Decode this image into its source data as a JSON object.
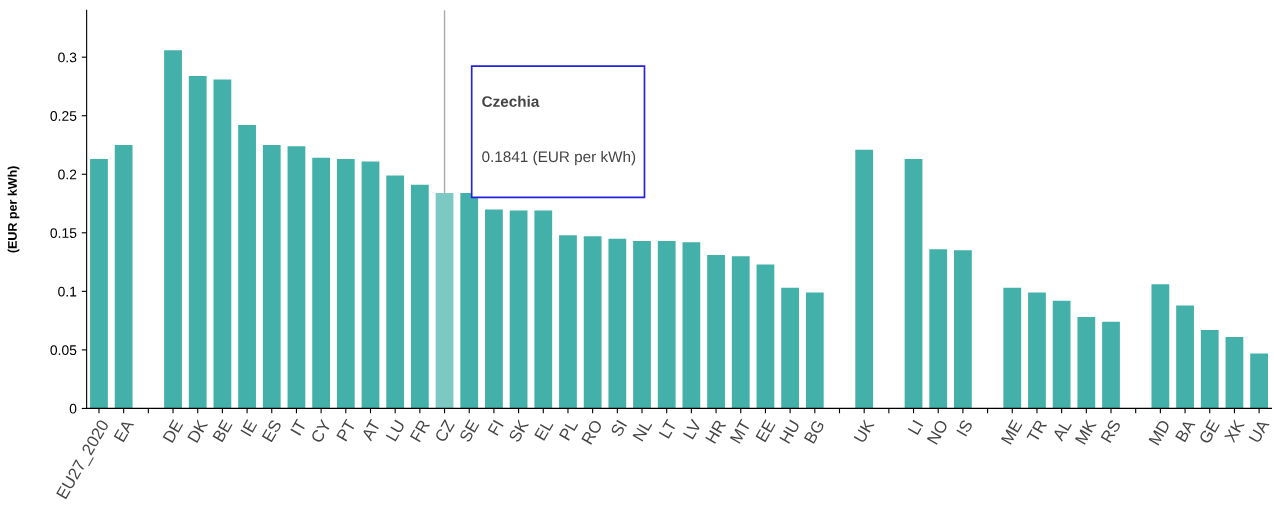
{
  "chart_data": {
    "type": "bar",
    "ylabel": "(EUR per kWh)",
    "categories": [
      "EU27_2020",
      "EA",
      null,
      "DE",
      "DK",
      "BE",
      "IE",
      "ES",
      "IT",
      "CY",
      "PT",
      "AT",
      "LU",
      "FR",
      "CZ",
      "SE",
      "FI",
      "SK",
      "EL",
      "PL",
      "RO",
      "SI",
      "NL",
      "LT",
      "LV",
      "HR",
      "MT",
      "EE",
      "HU",
      "BG",
      null,
      "UK",
      null,
      "LI",
      "NO",
      "IS",
      null,
      "ME",
      "TR",
      "AL",
      "MK",
      "RS",
      null,
      "MD",
      "BA",
      "GE",
      "XK",
      "UA"
    ],
    "values": [
      0.213,
      0.225,
      null,
      0.306,
      0.284,
      0.281,
      0.242,
      0.225,
      0.224,
      0.214,
      0.213,
      0.211,
      0.199,
      0.191,
      0.1841,
      0.184,
      0.17,
      0.169,
      0.169,
      0.148,
      0.147,
      0.145,
      0.143,
      0.143,
      0.142,
      0.131,
      0.13,
      0.123,
      0.103,
      0.099,
      null,
      0.221,
      null,
      0.213,
      0.136,
      0.135,
      null,
      0.103,
      0.099,
      0.092,
      0.078,
      0.074,
      null,
      0.106,
      0.088,
      0.067,
      0.061,
      0.047
    ],
    "colors": [
      "#43b0a9",
      "#43b0a9",
      null,
      "#43b0a9",
      "#43b0a9",
      "#43b0a9",
      "#43b0a9",
      "#43b0a9",
      "#43b0a9",
      "#43b0a9",
      "#43b0a9",
      "#43b0a9",
      "#43b0a9",
      "#43b0a9",
      "#7ec8c3",
      "#43b0a9",
      "#43b0a9",
      "#43b0a9",
      "#43b0a9",
      "#43b0a9",
      "#43b0a9",
      "#43b0a9",
      "#43b0a9",
      "#43b0a9",
      "#43b0a9",
      "#43b0a9",
      "#43b0a9",
      "#43b0a9",
      "#43b0a9",
      "#43b0a9",
      null,
      "#43b0a9",
      null,
      "#43b0a9",
      "#43b0a9",
      "#43b0a9",
      null,
      "#43b0a9",
      "#43b0a9",
      "#43b0a9",
      "#43b0a9",
      "#43b0a9",
      null,
      "#43b0a9",
      "#43b0a9",
      "#43b0a9",
      "#43b0a9",
      "#43b0a9"
    ],
    "ylim": [
      0,
      0.34
    ],
    "yticks": [
      0,
      0.05,
      0.1,
      0.15,
      0.2,
      0.25,
      0.3
    ],
    "ref_lines": [
      {
        "axis": "x",
        "value": "CZ",
        "color": "#aaaaaa"
      }
    ],
    "annotations": [
      "Czechia",
      "0.1841 (EUR per kWh)"
    ],
    "grid": false
  }
}
